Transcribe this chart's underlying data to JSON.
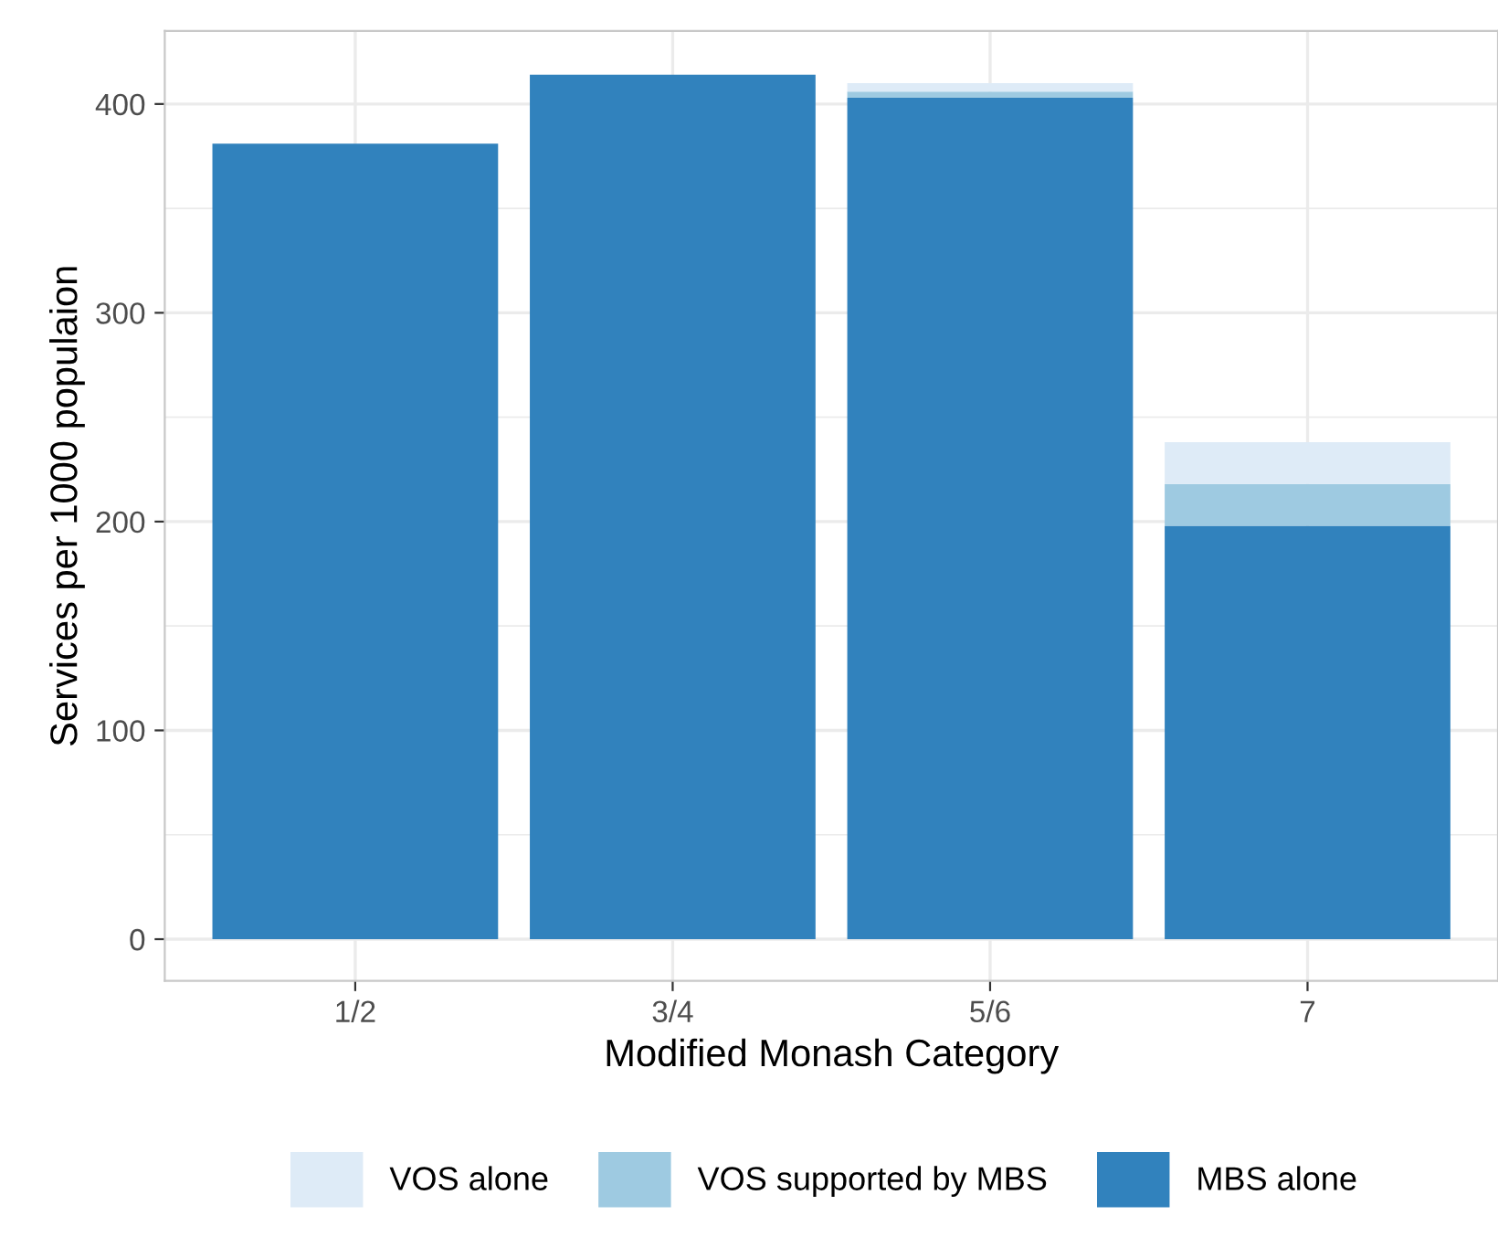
{
  "chart_data": {
    "type": "bar",
    "stacked": true,
    "xlabel": "Modified Monash Category",
    "ylabel": "Services per 1000 populaion",
    "categories": [
      "1/2",
      "3/4",
      "5/6",
      "7"
    ],
    "series": [
      {
        "name": "MBS alone",
        "color": "#3182bd",
        "values": [
          381,
          414,
          403,
          198
        ]
      },
      {
        "name": "VOS supported by MBS",
        "color": "#9ecae1",
        "values": [
          0,
          0,
          3,
          20
        ]
      },
      {
        "name": "VOS alone",
        "color": "#deebf7",
        "values": [
          0,
          0,
          4,
          20
        ]
      }
    ],
    "ylim": [
      -20,
      435
    ],
    "yticks": [
      0,
      100,
      200,
      300,
      400
    ],
    "grid": true,
    "legend": "bottom"
  }
}
